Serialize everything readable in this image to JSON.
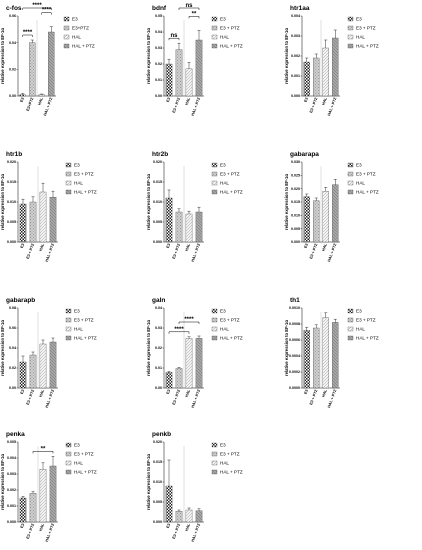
{
  "legend_labels": {
    "e3": "E3",
    "e3_ptz": "E3 + PTZ",
    "e3_ptz_compact": "E3+PTZ",
    "hal": "HAL",
    "hal_ptz": "HAL + PTZ"
  },
  "colors": {
    "e3": "#333333",
    "e3_ptz": "#bdbdbd",
    "hal": "#e6e6e6",
    "hal_ptz": "#9a9a9a",
    "axis": "#000000"
  },
  "chart_data": [
    {
      "type": "bar",
      "title": "c-fos",
      "ylabel": "relative expression to EF-1α",
      "ylim": [
        0,
        0.06
      ],
      "yticks": [
        "0.00",
        "0.02",
        "0.04",
        "0.06"
      ],
      "categories": [
        "E3",
        "E3+PTZ",
        "HAL",
        "HAL + PTZ"
      ],
      "legend": [
        "E3",
        "E3+PTZ",
        "HAL",
        "HAL + PTZ"
      ],
      "values": [
        0.001,
        0.04,
        0.001,
        0.048
      ],
      "errors": [
        0.001,
        0.002,
        0.0005,
        0.004
      ],
      "significance": [
        {
          "from": 0,
          "to": 1,
          "label": "****"
        },
        {
          "from": 2,
          "to": 3,
          "label": "****"
        },
        {
          "from": 0,
          "to": 3,
          "label": "****"
        }
      ]
    },
    {
      "type": "bar",
      "title": "bdnf",
      "ylabel": "relative expression to EF-1α",
      "ylim": [
        0,
        0.05
      ],
      "yticks": [
        "0.00",
        "0.01",
        "0.02",
        "0.03",
        "0.04",
        "0.05"
      ],
      "categories": [
        "E3",
        "E3 + PTZ",
        "HAL",
        "HAL + PTZ"
      ],
      "legend": [
        "E3",
        "E3 + PTZ",
        "HAL",
        "HAL + PTZ"
      ],
      "values": [
        0.02,
        0.029,
        0.017,
        0.035
      ],
      "errors": [
        0.003,
        0.004,
        0.004,
        0.006
      ],
      "significance": [
        {
          "from": 0,
          "to": 1,
          "label": "ns"
        },
        {
          "from": 2,
          "to": 3,
          "label": "**"
        },
        {
          "from": 1,
          "to": 3,
          "label": "ns"
        }
      ]
    },
    {
      "type": "bar",
      "title": "htr1aa",
      "ylabel": "relative expression to EF-1α",
      "ylim": [
        0,
        0.004
      ],
      "yticks": [
        "0.000",
        "0.001",
        "0.002",
        "0.003",
        "0.004"
      ],
      "categories": [
        "E3",
        "E3 + PTZ",
        "HAL",
        "HAL + PTZ"
      ],
      "legend": [
        "E3",
        "E3 + PTZ",
        "HAL",
        "HAL + PTZ"
      ],
      "values": [
        0.0017,
        0.0019,
        0.0024,
        0.0029
      ],
      "errors": [
        0.0002,
        0.0002,
        0.0004,
        0.0004
      ],
      "significance": []
    },
    {
      "type": "bar",
      "title": "htr1b",
      "ylabel": "relative expression to EF-1α",
      "ylim": [
        0,
        0.02
      ],
      "yticks": [
        "0.000",
        "0.005",
        "0.010",
        "0.015",
        "0.020"
      ],
      "categories": [
        "E3",
        "E3 + PTZ",
        "HAL",
        "HAL + PTZ"
      ],
      "legend": [
        "E3",
        "E3 + PTZ",
        "HAL",
        "HAL + PTZ"
      ],
      "values": [
        0.0095,
        0.01,
        0.0125,
        0.0112
      ],
      "errors": [
        0.0012,
        0.0013,
        0.0022,
        0.0015
      ],
      "significance": []
    },
    {
      "type": "bar",
      "title": "htr2b",
      "ylabel": "relative expression to EF-1α",
      "ylim": [
        0,
        0.02
      ],
      "yticks": [
        "0.000",
        "0.005",
        "0.010",
        "0.015",
        "0.020"
      ],
      "categories": [
        "E3",
        "E3 + PTZ",
        "HAL",
        "HAL + PTZ"
      ],
      "legend": [
        "E3",
        "E3 + PTZ",
        "HAL",
        "HAL + PTZ"
      ],
      "values": [
        0.011,
        0.0075,
        0.007,
        0.0075
      ],
      "errors": [
        0.002,
        0.0008,
        0.0007,
        0.0012
      ],
      "significance": []
    },
    {
      "type": "bar",
      "title": "gabarapa",
      "ylabel": "relative expression to EF-1α",
      "ylim": [
        0,
        0.03
      ],
      "yticks": [
        "0.000",
        "0.005",
        "0.010",
        "0.015",
        "0.020",
        "0.025",
        "0.030"
      ],
      "categories": [
        "E3",
        "E3 + PTZ",
        "HAL",
        "HAL + PTZ"
      ],
      "legend": [
        "E3",
        "E3 + PTZ",
        "HAL",
        "HAL + PTZ"
      ],
      "values": [
        0.017,
        0.0155,
        0.019,
        0.0215
      ],
      "errors": [
        0.001,
        0.001,
        0.0015,
        0.002
      ],
      "significance": []
    },
    {
      "type": "bar",
      "title": "gabarapb",
      "ylabel": "relative expression to EF-1α",
      "ylim": [
        0,
        0.08
      ],
      "yticks": [
        "0.00",
        "0.02",
        "0.04",
        "0.06",
        "0.08"
      ],
      "categories": [
        "E3",
        "E3 + PTZ",
        "HAL",
        "HAL + PTZ"
      ],
      "legend": [
        "E3",
        "E3 + PTZ",
        "HAL",
        "HAL + PTZ"
      ],
      "values": [
        0.026,
        0.033,
        0.044,
        0.046
      ],
      "errors": [
        0.006,
        0.003,
        0.004,
        0.004
      ],
      "significance": []
    },
    {
      "type": "bar",
      "title": "galn",
      "ylabel": "relative expression to EF-1α",
      "ylim": [
        0,
        0.04
      ],
      "yticks": [
        "0.00",
        "0.01",
        "0.02",
        "0.03",
        "0.04"
      ],
      "categories": [
        "E3",
        "E3 + PTZ",
        "HAL",
        "HAL + PTZ"
      ],
      "legend": [
        "E3",
        "E3 + PTZ",
        "HAL",
        "HAL + PTZ"
      ],
      "values": [
        0.0078,
        0.0098,
        0.0248,
        0.0248
      ],
      "errors": [
        0.0004,
        0.0005,
        0.0008,
        0.0012
      ],
      "significance": [
        {
          "from": 0,
          "to": 2,
          "label": "****"
        },
        {
          "from": 1,
          "to": 3,
          "label": "****"
        }
      ]
    },
    {
      "type": "bar",
      "title": "th1",
      "ylabel": "relative expression to EF-1α",
      "ylim": [
        0,
        0.001
      ],
      "yticks": [
        "0.0000",
        "0.0002",
        "0.0004",
        "0.0006",
        "0.0008",
        "0.0010"
      ],
      "categories": [
        "E3",
        "E3 + PTZ",
        "HAL",
        "HAL + PTZ"
      ],
      "legend": [
        "E3",
        "E3 + PTZ",
        "HAL",
        "HAL + PTZ"
      ],
      "values": [
        0.00072,
        0.00075,
        0.00088,
        0.00082
      ],
      "errors": [
        4e-05,
        4e-05,
        6e-05,
        4e-05
      ],
      "significance": []
    },
    {
      "type": "bar",
      "title": "penka",
      "ylabel": "relative expression to EF-1α",
      "ylim": [
        0,
        0.005
      ],
      "yticks": [
        "0.000",
        "0.001",
        "0.002",
        "0.003",
        "0.004",
        "0.005"
      ],
      "categories": [
        "E3",
        "E3 + PTZ",
        "HAL",
        "HAL + PTZ"
      ],
      "legend": [
        "E3",
        "E3 + PTZ",
        "HAL",
        "HAL + PTZ"
      ],
      "values": [
        0.0015,
        0.0018,
        0.0033,
        0.0035
      ],
      "errors": [
        0.0001,
        0.0001,
        0.0004,
        0.0006
      ],
      "significance": [
        {
          "from": 1,
          "to": 3,
          "label": "**"
        }
      ]
    },
    {
      "type": "bar",
      "title": "penkb",
      "ylabel": "relative expression to EF-1α",
      "ylim": [
        0,
        0.02
      ],
      "yticks": [
        "0.000",
        "0.005",
        "0.010",
        "0.015",
        "0.020"
      ],
      "categories": [
        "E3",
        "E3 + PTZ",
        "HAL",
        "HAL + PTZ"
      ],
      "legend": [
        "E3",
        "E3 + PTZ",
        "HAL",
        "HAL + PTZ"
      ],
      "values": [
        0.009,
        0.0027,
        0.003,
        0.0028
      ],
      "errors": [
        0.0065,
        0.0003,
        0.0005,
        0.0005
      ],
      "significance": []
    }
  ]
}
